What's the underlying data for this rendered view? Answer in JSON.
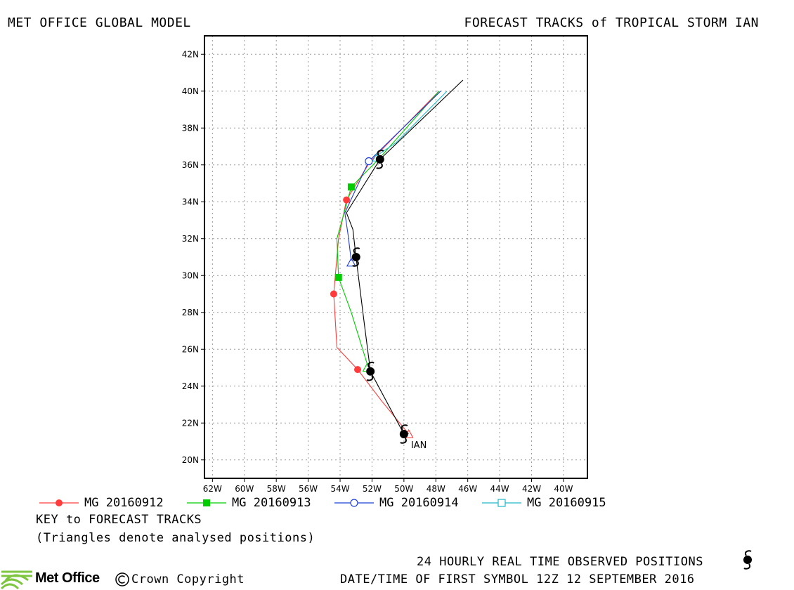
{
  "header": {
    "left": "MET OFFICE GLOBAL MODEL",
    "right": "FORECAST TRACKS of TROPICAL STORM IAN"
  },
  "map": {
    "lon_min": -62.5,
    "lon_max": -38.5,
    "lat_min": 19,
    "lat_max": 43,
    "grid": true,
    "lon_ticks": [
      -62,
      -60,
      -58,
      -56,
      -54,
      -52,
      -50,
      -48,
      -46,
      -44,
      -42,
      -40
    ],
    "lon_tick_labels": [
      "62W",
      "60W",
      "58W",
      "56W",
      "54W",
      "52W",
      "50W",
      "48W",
      "46W",
      "44W",
      "42W",
      "40W"
    ],
    "lat_ticks": [
      20,
      22,
      24,
      26,
      28,
      30,
      32,
      34,
      36,
      38,
      40,
      42
    ],
    "lat_tick_labels": [
      "20N",
      "22N",
      "24N",
      "26N",
      "28N",
      "30N",
      "32N",
      "34N",
      "36N",
      "38N",
      "40N",
      "42N"
    ],
    "storm_label": "IAN"
  },
  "chart_data": {
    "type": "line",
    "xlabel": "",
    "ylabel": "",
    "xlim": [
      -62.5,
      -38.5
    ],
    "ylim": [
      19,
      43
    ],
    "series": [
      {
        "name": "MG 20160912",
        "color": "#ff3b3b",
        "marker": "filled-circle",
        "points": [
          [
            -49.7,
            21.4
          ],
          [
            -51.4,
            23.2
          ],
          [
            -52.9,
            24.9
          ],
          [
            -54.2,
            26.1
          ],
          [
            -54.4,
            29.0
          ],
          [
            -54.1,
            32.0
          ],
          [
            -53.6,
            34.1
          ],
          [
            -52.1,
            36.2
          ],
          [
            -47.8,
            40.0
          ]
        ],
        "marker_points": [
          [
            -52.9,
            24.9
          ],
          [
            -54.4,
            29.0
          ],
          [
            -53.6,
            34.1
          ]
        ]
      },
      {
        "name": "MG 20160913",
        "color": "#00cc00",
        "marker": "filled-square",
        "points": [
          [
            -52.3,
            25.2
          ],
          [
            -53.3,
            28.0
          ],
          [
            -54.1,
            29.9
          ],
          [
            -54.2,
            32.0
          ],
          [
            -53.3,
            34.8
          ],
          [
            -51.6,
            36.3
          ],
          [
            -47.8,
            40.0
          ]
        ],
        "marker_points": [
          [
            -54.1,
            29.9
          ],
          [
            -53.3,
            34.8
          ]
        ]
      },
      {
        "name": "MG 20160914",
        "color": "#1f3dd6",
        "marker": "open-circle",
        "points": [
          [
            -53.3,
            30.8
          ],
          [
            -53.5,
            32.2
          ],
          [
            -53.7,
            33.4
          ],
          [
            -52.2,
            36.2
          ],
          [
            -47.7,
            40.0
          ]
        ],
        "marker_points": [
          [
            -52.2,
            36.2
          ]
        ]
      },
      {
        "name": "MG 20160915",
        "color": "#20b8c8",
        "marker": "open-square",
        "points": [
          [
            -51.7,
            36.5
          ],
          [
            -50.5,
            37.2
          ],
          [
            -47.3,
            40.0
          ]
        ],
        "marker_points": []
      },
      {
        "name": "Observed",
        "color": "#000000",
        "marker": "storm-symbol",
        "points": [
          [
            -50.0,
            21.4
          ],
          [
            -52.1,
            24.8
          ],
          [
            -52.5,
            27.5
          ],
          [
            -53.0,
            31.0
          ],
          [
            -53.2,
            32.5
          ],
          [
            -53.6,
            33.4
          ],
          [
            -51.5,
            36.3
          ],
          [
            -46.3,
            40.6
          ]
        ],
        "marker_points": [
          [
            -50.0,
            21.4
          ],
          [
            -52.1,
            24.8
          ],
          [
            -53.0,
            31.0
          ],
          [
            -51.5,
            36.3
          ]
        ]
      }
    ],
    "analysed_triangles": [
      {
        "color": "#ff3b3b",
        "lon": -49.7,
        "lat": 21.4
      },
      {
        "color": "#00cc00",
        "lon": -52.3,
        "lat": 25.0
      },
      {
        "color": "#1f3dd6",
        "lon": -53.3,
        "lat": 30.7
      },
      {
        "color": "#20b8c8",
        "lon": -51.7,
        "lat": 36.4
      }
    ]
  },
  "legend": {
    "items": [
      {
        "label": "MG 20160912",
        "color": "#ff3b3b",
        "marker": "filled-circle"
      },
      {
        "label": "MG 20160913",
        "color": "#00cc00",
        "marker": "filled-square"
      },
      {
        "label": "MG 20160914",
        "color": "#1f3dd6",
        "marker": "open-circle"
      },
      {
        "label": "MG 20160915",
        "color": "#20b8c8",
        "marker": "open-square"
      }
    ],
    "key_title": "KEY to FORECAST TRACKS",
    "key_note": "(Triangles denote analysed positions)"
  },
  "footer": {
    "observed_label": "24 HOURLY REAL TIME OBSERVED POSITIONS",
    "datetime": "DATE/TIME OF FIRST SYMBOL 12Z 12 SEPTEMBER 2016",
    "logo_text": "Met Office",
    "copyright": "Crown Copyright"
  }
}
